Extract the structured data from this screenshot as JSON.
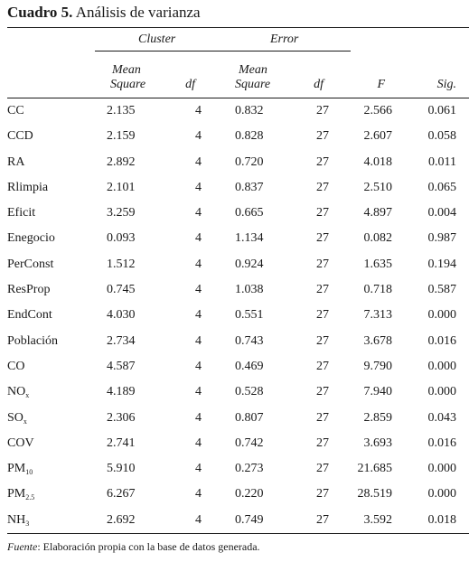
{
  "title": {
    "number": "Cuadro 5.",
    "text": "Análisis de varianza"
  },
  "groups": {
    "cluster": "Cluster",
    "error": "Error"
  },
  "headers": {
    "ms1_line1": "Mean",
    "ms1_line2": "Square",
    "df1": "df",
    "ms2_line1": "Mean",
    "ms2_line2": "Square",
    "df2": "df",
    "f": "F",
    "sig": "Sig."
  },
  "rows": [
    {
      "var": "CC",
      "sub": "",
      "ms1": "2.135",
      "df1": "4",
      "ms2": "0.832",
      "df2": "27",
      "f": "2.566",
      "sig": "0.061"
    },
    {
      "var": "CCD",
      "sub": "",
      "ms1": "2.159",
      "df1": "4",
      "ms2": "0.828",
      "df2": "27",
      "f": "2.607",
      "sig": "0.058"
    },
    {
      "var": "RA",
      "sub": "",
      "ms1": "2.892",
      "df1": "4",
      "ms2": "0.720",
      "df2": "27",
      "f": "4.018",
      "sig": "0.011"
    },
    {
      "var": "Rlimpia",
      "sub": "",
      "ms1": "2.101",
      "df1": "4",
      "ms2": "0.837",
      "df2": "27",
      "f": "2.510",
      "sig": "0.065"
    },
    {
      "var": "Eficit",
      "sub": "",
      "ms1": "3.259",
      "df1": "4",
      "ms2": "0.665",
      "df2": "27",
      "f": "4.897",
      "sig": "0.004"
    },
    {
      "var": "Enegocio",
      "sub": "",
      "ms1": "0.093",
      "df1": "4",
      "ms2": "1.134",
      "df2": "27",
      "f": "0.082",
      "sig": "0.987"
    },
    {
      "var": "PerConst",
      "sub": "",
      "ms1": "1.512",
      "df1": "4",
      "ms2": "0.924",
      "df2": "27",
      "f": "1.635",
      "sig": "0.194"
    },
    {
      "var": "ResProp",
      "sub": "",
      "ms1": "0.745",
      "df1": "4",
      "ms2": "1.038",
      "df2": "27",
      "f": "0.718",
      "sig": "0.587"
    },
    {
      "var": "EndCont",
      "sub": "",
      "ms1": "4.030",
      "df1": "4",
      "ms2": "0.551",
      "df2": "27",
      "f": "7.313",
      "sig": "0.000"
    },
    {
      "var": "Población",
      "sub": "",
      "ms1": "2.734",
      "df1": "4",
      "ms2": "0.743",
      "df2": "27",
      "f": "3.678",
      "sig": "0.016"
    },
    {
      "var": "CO",
      "sub": "",
      "ms1": "4.587",
      "df1": "4",
      "ms2": "0.469",
      "df2": "27",
      "f": "9.790",
      "sig": "0.000"
    },
    {
      "var": "NO",
      "sub": "x",
      "ms1": "4.189",
      "df1": "4",
      "ms2": "0.528",
      "df2": "27",
      "f": "7.940",
      "sig": "0.000"
    },
    {
      "var": "SO",
      "sub": "x",
      "ms1": "2.306",
      "df1": "4",
      "ms2": "0.807",
      "df2": "27",
      "f": "2.859",
      "sig": "0.043"
    },
    {
      "var": "COV",
      "sub": "",
      "ms1": "2.741",
      "df1": "4",
      "ms2": "0.742",
      "df2": "27",
      "f": "3.693",
      "sig": "0.016"
    },
    {
      "var": "PM",
      "sub": "10",
      "ms1": "5.910",
      "df1": "4",
      "ms2": "0.273",
      "df2": "27",
      "f": "21.685",
      "sig": "0.000"
    },
    {
      "var": "PM",
      "sub": "2.5",
      "ms1": "6.267",
      "df1": "4",
      "ms2": "0.220",
      "df2": "27",
      "f": "28.519",
      "sig": "0.000"
    },
    {
      "var": "NH",
      "sub": "3",
      "ms1": "2.692",
      "df1": "4",
      "ms2": "0.749",
      "df2": "27",
      "f": "3.592",
      "sig": "0.018"
    }
  ],
  "footnote": {
    "label": "Fuente",
    "text": ": Elaboración propia con la base de datos generada."
  }
}
